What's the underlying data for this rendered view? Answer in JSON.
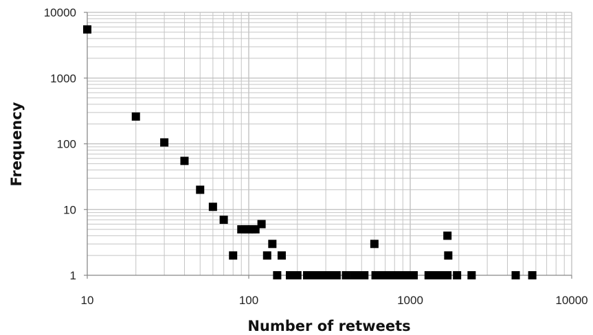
{
  "chart_data": {
    "type": "scatter",
    "title": "",
    "xlabel": "Number of retweets",
    "ylabel": "Frequency",
    "xscale": "log",
    "yscale": "log",
    "xlim": [
      10,
      10000
    ],
    "ylim": [
      1,
      10000
    ],
    "grid": true,
    "legend": "none",
    "marker": "square",
    "marker_color": "#000000",
    "x_ticks": [
      "10",
      "100",
      "1000",
      "10000"
    ],
    "y_ticks": [
      "1",
      "10",
      "100",
      "1000",
      "10000"
    ],
    "points": [
      [
        10,
        5500
      ],
      [
        20,
        260
      ],
      [
        30,
        105
      ],
      [
        40,
        55
      ],
      [
        50,
        20
      ],
      [
        60,
        11
      ],
      [
        70,
        7
      ],
      [
        80,
        2
      ],
      [
        90,
        5
      ],
      [
        95,
        5
      ],
      [
        100,
        5
      ],
      [
        105,
        5
      ],
      [
        110,
        5
      ],
      [
        120,
        6
      ],
      [
        130,
        2
      ],
      [
        140,
        3
      ],
      [
        150,
        1
      ],
      [
        160,
        2
      ],
      [
        180,
        1
      ],
      [
        190,
        1
      ],
      [
        200,
        1
      ],
      [
        230,
        1
      ],
      [
        240,
        1
      ],
      [
        250,
        1
      ],
      [
        260,
        1
      ],
      [
        270,
        1
      ],
      [
        280,
        1
      ],
      [
        290,
        1
      ],
      [
        300,
        1
      ],
      [
        320,
        1
      ],
      [
        330,
        1
      ],
      [
        350,
        1
      ],
      [
        400,
        1
      ],
      [
        450,
        1
      ],
      [
        480,
        1
      ],
      [
        520,
        1
      ],
      [
        600,
        3
      ],
      [
        610,
        1
      ],
      [
        650,
        1
      ],
      [
        680,
        1
      ],
      [
        750,
        1
      ],
      [
        780,
        1
      ],
      [
        820,
        1
      ],
      [
        860,
        1
      ],
      [
        900,
        1
      ],
      [
        950,
        1
      ],
      [
        1000,
        1
      ],
      [
        1050,
        1
      ],
      [
        1300,
        1
      ],
      [
        1380,
        1
      ],
      [
        1450,
        1
      ],
      [
        1500,
        1
      ],
      [
        1560,
        1
      ],
      [
        1620,
        1
      ],
      [
        1700,
        4
      ],
      [
        1720,
        2
      ],
      [
        1700,
        1
      ],
      [
        1950,
        1
      ],
      [
        2400,
        1
      ],
      [
        4500,
        1
      ],
      [
        5700,
        1
      ]
    ]
  }
}
